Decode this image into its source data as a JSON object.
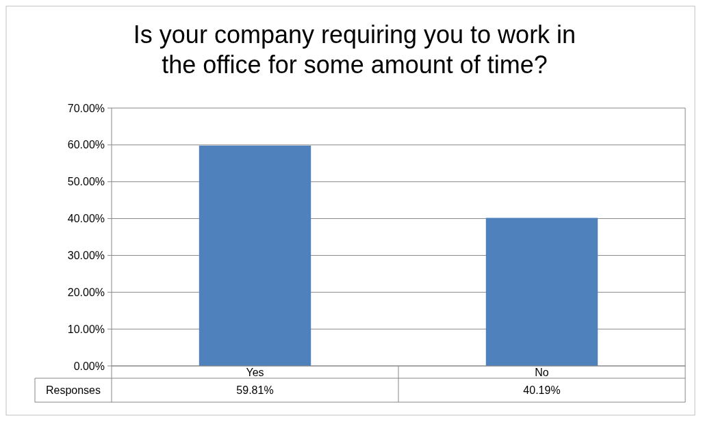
{
  "chart_data": {
    "type": "bar",
    "title": "Is your company requiring you to work in the office for some amount of time?",
    "categories": [
      "Yes",
      "No"
    ],
    "series": [
      {
        "name": "Responses",
        "color": "#4f81bd",
        "values": [
          59.81,
          40.19
        ],
        "value_labels": [
          "59.81%",
          "40.19%"
        ]
      }
    ],
    "ylim": [
      0,
      70
    ],
    "yticks": [
      {
        "value": 0,
        "label": "0.00%"
      },
      {
        "value": 10,
        "label": "10.00%"
      },
      {
        "value": 20,
        "label": "20.00%"
      },
      {
        "value": 30,
        "label": "30.00%"
      },
      {
        "value": 40,
        "label": "40.00%"
      },
      {
        "value": 50,
        "label": "50.00%"
      },
      {
        "value": 60,
        "label": "60.00%"
      },
      {
        "value": 70,
        "label": "70.00%"
      }
    ],
    "grid": "y"
  }
}
